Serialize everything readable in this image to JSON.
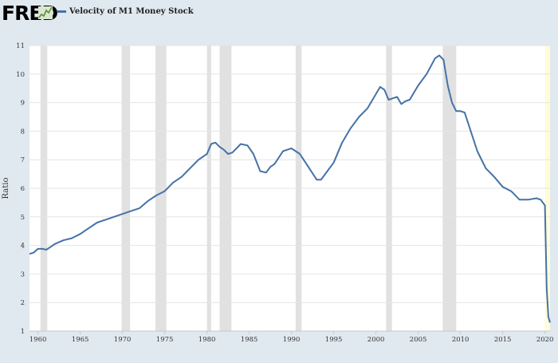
{
  "header": {
    "logo_text": "FRED",
    "legend_label": "Velocity of M1 Money Stock"
  },
  "colors": {
    "series": "#4572a7",
    "recession": "#e1e1e1",
    "forecast_band": "#fffdd9",
    "page": "#e1e9f0",
    "plot": "#ffffff"
  },
  "chart_data": {
    "type": "line",
    "title": "Velocity of M1 Money Stock",
    "xlabel": "",
    "ylabel": "Ratio",
    "xlim": [
      1959,
      2020.6
    ],
    "ylim": [
      1,
      11
    ],
    "y_ticks": [
      1,
      2,
      3,
      4,
      5,
      6,
      7,
      8,
      9,
      10,
      11
    ],
    "x_ticks": [
      1960,
      1965,
      1970,
      1975,
      1980,
      1985,
      1990,
      1995,
      2000,
      2005,
      2010,
      2015,
      2020
    ],
    "grid": "horizontal",
    "recessions": [
      [
        1960.3,
        1961.1
      ],
      [
        1969.9,
        1970.9
      ],
      [
        1973.9,
        1975.2
      ],
      [
        1980.0,
        1980.5
      ],
      [
        1981.5,
        1982.9
      ],
      [
        1990.5,
        1991.2
      ],
      [
        2001.2,
        2001.9
      ],
      [
        2007.9,
        2009.5
      ]
    ],
    "highlight_band": [
      2020.0,
      2020.6
    ],
    "series": [
      {
        "name": "Velocity of M1 Money Stock",
        "x": [
          1959.0,
          1959.5,
          1960.0,
          1960.5,
          1961.0,
          1961.5,
          1962.0,
          1963.0,
          1964.0,
          1965.0,
          1966.0,
          1967.0,
          1968.0,
          1969.0,
          1970.0,
          1971.0,
          1972.0,
          1973.0,
          1974.0,
          1975.0,
          1976.0,
          1977.0,
          1978.0,
          1979.0,
          1980.0,
          1980.5,
          1981.0,
          1981.5,
          1982.0,
          1982.5,
          1983.0,
          1984.0,
          1984.8,
          1985.5,
          1986.3,
          1987.0,
          1987.5,
          1988.0,
          1989.0,
          1989.5,
          1990.0,
          1990.5,
          1991.0,
          1992.0,
          1993.0,
          1993.5,
          1994.0,
          1995.0,
          1996.0,
          1997.0,
          1998.0,
          1999.0,
          2000.0,
          2000.5,
          2001.0,
          2001.5,
          2002.0,
          2002.5,
          2003.0,
          2003.5,
          2004.0,
          2005.0,
          2006.0,
          2007.0,
          2007.5,
          2008.0,
          2008.5,
          2009.0,
          2009.5,
          2010.0,
          2010.5,
          2011.0,
          2012.0,
          2013.0,
          2014.0,
          2015.0,
          2016.0,
          2017.0,
          2018.0,
          2019.0,
          2019.5,
          2020.0,
          2020.2,
          2020.4,
          2020.6
        ],
        "y": [
          3.7,
          3.75,
          3.88,
          3.88,
          3.85,
          3.95,
          4.05,
          4.18,
          4.25,
          4.4,
          4.6,
          4.8,
          4.9,
          5.0,
          5.1,
          5.2,
          5.3,
          5.55,
          5.75,
          5.9,
          6.2,
          6.4,
          6.7,
          7.0,
          7.2,
          7.55,
          7.6,
          7.45,
          7.35,
          7.2,
          7.25,
          7.55,
          7.5,
          7.2,
          6.6,
          6.55,
          6.75,
          6.85,
          7.3,
          7.35,
          7.4,
          7.3,
          7.2,
          6.75,
          6.3,
          6.3,
          6.5,
          6.9,
          7.6,
          8.1,
          8.5,
          8.8,
          9.3,
          9.55,
          9.45,
          9.1,
          9.15,
          9.2,
          8.95,
          9.05,
          9.1,
          9.6,
          10.0,
          10.55,
          10.65,
          10.5,
          9.6,
          9.0,
          8.7,
          8.7,
          8.65,
          8.2,
          7.3,
          6.7,
          6.4,
          6.05,
          5.9,
          5.6,
          5.6,
          5.65,
          5.6,
          5.4,
          2.5,
          1.5,
          1.3
        ]
      }
    ]
  }
}
